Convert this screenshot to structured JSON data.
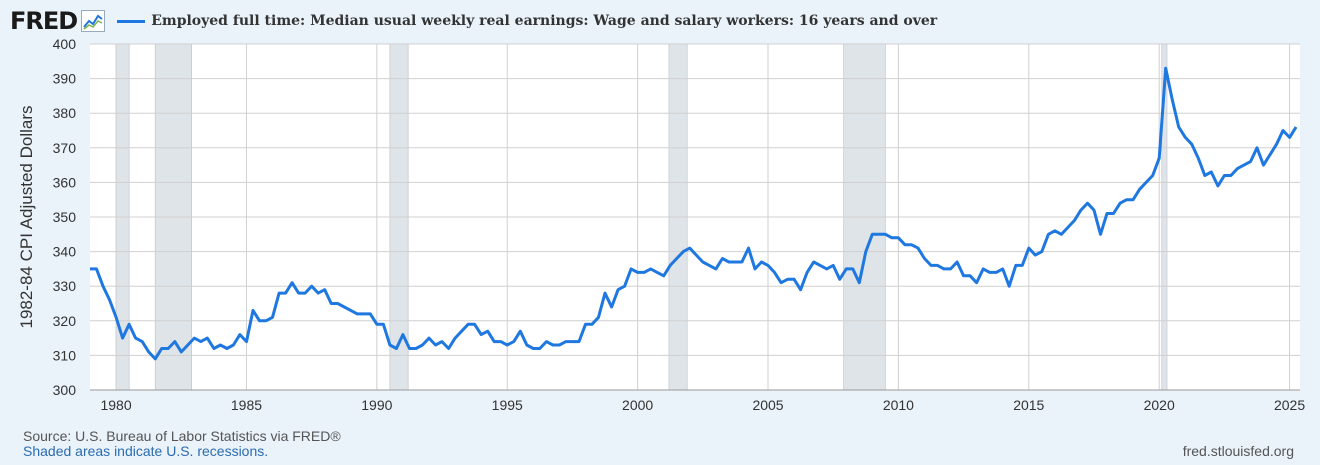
{
  "header": {
    "logo_text": "FRED",
    "series_title": "Employed full time: Median usual weekly real earnings: Wage and salary workers: 16 years and over"
  },
  "footer": {
    "source": "Source: U.S. Bureau of Labor Statistics via FRED®",
    "shaded_note": "Shaded areas indicate U.S. recessions.",
    "site": "fred.stlouisfed.org"
  },
  "colors": {
    "line": "#1f77e0",
    "plot_background": "#ffffff",
    "page_background": "#eaf2fa",
    "grid": "#d0d0d0",
    "recession": "#dfe4e9"
  },
  "chart_data": {
    "type": "line",
    "title": "Employed full time: Median usual weekly real earnings: Wage and salary workers: 16 years and over",
    "xlabel": "",
    "ylabel": "1982-84 CPI Adjusted Dollars",
    "xlim": [
      1979.0,
      2025.4
    ],
    "ylim": [
      300,
      400
    ],
    "grid": true,
    "legend": "top-left",
    "x_ticks": [
      "1980",
      "1985",
      "1990",
      "1995",
      "2000",
      "2005",
      "2010",
      "2015",
      "2020",
      "2025"
    ],
    "y_ticks": [
      "300",
      "310",
      "320",
      "330",
      "340",
      "350",
      "360",
      "370",
      "380",
      "390",
      "400"
    ],
    "recessions": [
      [
        1980.0,
        1980.5
      ],
      [
        1981.5,
        1982.9
      ],
      [
        1990.5,
        1991.2
      ],
      [
        2001.2,
        2001.9
      ],
      [
        2007.9,
        2009.5
      ],
      [
        2020.1,
        2020.3
      ]
    ],
    "series": [
      {
        "name": "Employed full time: Median usual weekly real earnings: Wage and salary workers: 16 years and over",
        "points": [
          [
            1979.0,
            335
          ],
          [
            1979.25,
            335
          ],
          [
            1979.5,
            330
          ],
          [
            1979.75,
            326
          ],
          [
            1980.0,
            321
          ],
          [
            1980.25,
            315
          ],
          [
            1980.5,
            319
          ],
          [
            1980.75,
            315
          ],
          [
            1981.0,
            314
          ],
          [
            1981.25,
            311
          ],
          [
            1981.5,
            309
          ],
          [
            1981.75,
            312
          ],
          [
            1982.0,
            312
          ],
          [
            1982.25,
            314
          ],
          [
            1982.5,
            311
          ],
          [
            1982.75,
            313
          ],
          [
            1983.0,
            315
          ],
          [
            1983.25,
            314
          ],
          [
            1983.5,
            315
          ],
          [
            1983.75,
            312
          ],
          [
            1984.0,
            313
          ],
          [
            1984.25,
            312
          ],
          [
            1984.5,
            313
          ],
          [
            1984.75,
            316
          ],
          [
            1985.0,
            314
          ],
          [
            1985.25,
            323
          ],
          [
            1985.5,
            320
          ],
          [
            1985.75,
            320
          ],
          [
            1986.0,
            321
          ],
          [
            1986.25,
            328
          ],
          [
            1986.5,
            328
          ],
          [
            1986.75,
            331
          ],
          [
            1987.0,
            328
          ],
          [
            1987.25,
            328
          ],
          [
            1987.5,
            330
          ],
          [
            1987.75,
            328
          ],
          [
            1988.0,
            329
          ],
          [
            1988.25,
            325
          ],
          [
            1988.5,
            325
          ],
          [
            1988.75,
            324
          ],
          [
            1989.0,
            323
          ],
          [
            1989.25,
            322
          ],
          [
            1989.5,
            322
          ],
          [
            1989.75,
            322
          ],
          [
            1990.0,
            319
          ],
          [
            1990.25,
            319
          ],
          [
            1990.5,
            313
          ],
          [
            1990.75,
            312
          ],
          [
            1991.0,
            316
          ],
          [
            1991.25,
            312
          ],
          [
            1991.5,
            312
          ],
          [
            1991.75,
            313
          ],
          [
            1992.0,
            315
          ],
          [
            1992.25,
            313
          ],
          [
            1992.5,
            314
          ],
          [
            1992.75,
            312
          ],
          [
            1993.0,
            315
          ],
          [
            1993.25,
            317
          ],
          [
            1993.5,
            319
          ],
          [
            1993.75,
            319
          ],
          [
            1994.0,
            316
          ],
          [
            1994.25,
            317
          ],
          [
            1994.5,
            314
          ],
          [
            1994.75,
            314
          ],
          [
            1995.0,
            313
          ],
          [
            1995.25,
            314
          ],
          [
            1995.5,
            317
          ],
          [
            1995.75,
            313
          ],
          [
            1996.0,
            312
          ],
          [
            1996.25,
            312
          ],
          [
            1996.5,
            314
          ],
          [
            1996.75,
            313
          ],
          [
            1997.0,
            313
          ],
          [
            1997.25,
            314
          ],
          [
            1997.5,
            314
          ],
          [
            1997.75,
            314
          ],
          [
            1998.0,
            319
          ],
          [
            1998.25,
            319
          ],
          [
            1998.5,
            321
          ],
          [
            1998.75,
            328
          ],
          [
            1999.0,
            324
          ],
          [
            1999.25,
            329
          ],
          [
            1999.5,
            330
          ],
          [
            1999.75,
            335
          ],
          [
            2000.0,
            334
          ],
          [
            2000.25,
            334
          ],
          [
            2000.5,
            335
          ],
          [
            2000.75,
            334
          ],
          [
            2001.0,
            333
          ],
          [
            2001.25,
            336
          ],
          [
            2001.5,
            338
          ],
          [
            2001.75,
            340
          ],
          [
            2002.0,
            341
          ],
          [
            2002.25,
            339
          ],
          [
            2002.5,
            337
          ],
          [
            2002.75,
            336
          ],
          [
            2003.0,
            335
          ],
          [
            2003.25,
            338
          ],
          [
            2003.5,
            337
          ],
          [
            2003.75,
            337
          ],
          [
            2004.0,
            337
          ],
          [
            2004.25,
            341
          ],
          [
            2004.5,
            335
          ],
          [
            2004.75,
            337
          ],
          [
            2005.0,
            336
          ],
          [
            2005.25,
            334
          ],
          [
            2005.5,
            331
          ],
          [
            2005.75,
            332
          ],
          [
            2006.0,
            332
          ],
          [
            2006.25,
            329
          ],
          [
            2006.5,
            334
          ],
          [
            2006.75,
            337
          ],
          [
            2007.0,
            336
          ],
          [
            2007.25,
            335
          ],
          [
            2007.5,
            336
          ],
          [
            2007.75,
            332
          ],
          [
            2008.0,
            335
          ],
          [
            2008.25,
            335
          ],
          [
            2008.5,
            331
          ],
          [
            2008.75,
            340
          ],
          [
            2009.0,
            345
          ],
          [
            2009.25,
            345
          ],
          [
            2009.5,
            345
          ],
          [
            2009.75,
            344
          ],
          [
            2010.0,
            344
          ],
          [
            2010.25,
            342
          ],
          [
            2010.5,
            342
          ],
          [
            2010.75,
            341
          ],
          [
            2011.0,
            338
          ],
          [
            2011.25,
            336
          ],
          [
            2011.5,
            336
          ],
          [
            2011.75,
            335
          ],
          [
            2012.0,
            335
          ],
          [
            2012.25,
            337
          ],
          [
            2012.5,
            333
          ],
          [
            2012.75,
            333
          ],
          [
            2013.0,
            331
          ],
          [
            2013.25,
            335
          ],
          [
            2013.5,
            334
          ],
          [
            2013.75,
            334
          ],
          [
            2014.0,
            335
          ],
          [
            2014.25,
            330
          ],
          [
            2014.5,
            336
          ],
          [
            2014.75,
            336
          ],
          [
            2015.0,
            341
          ],
          [
            2015.25,
            339
          ],
          [
            2015.5,
            340
          ],
          [
            2015.75,
            345
          ],
          [
            2016.0,
            346
          ],
          [
            2016.25,
            345
          ],
          [
            2016.5,
            347
          ],
          [
            2016.75,
            349
          ],
          [
            2017.0,
            352
          ],
          [
            2017.25,
            354
          ],
          [
            2017.5,
            352
          ],
          [
            2017.75,
            345
          ],
          [
            2018.0,
            351
          ],
          [
            2018.25,
            351
          ],
          [
            2018.5,
            354
          ],
          [
            2018.75,
            355
          ],
          [
            2019.0,
            355
          ],
          [
            2019.25,
            358
          ],
          [
            2019.5,
            360
          ],
          [
            2019.75,
            362
          ],
          [
            2020.0,
            367
          ],
          [
            2020.25,
            393
          ],
          [
            2020.5,
            384
          ],
          [
            2020.75,
            376
          ],
          [
            2021.0,
            373
          ],
          [
            2021.25,
            371
          ],
          [
            2021.5,
            367
          ],
          [
            2021.75,
            362
          ],
          [
            2022.0,
            363
          ],
          [
            2022.25,
            359
          ],
          [
            2022.5,
            362
          ],
          [
            2022.75,
            362
          ],
          [
            2023.0,
            364
          ],
          [
            2023.25,
            365
          ],
          [
            2023.5,
            366
          ],
          [
            2023.75,
            370
          ],
          [
            2024.0,
            365
          ],
          [
            2024.25,
            368
          ],
          [
            2024.5,
            371
          ],
          [
            2024.75,
            375
          ],
          [
            2025.0,
            373
          ],
          [
            2025.25,
            376
          ]
        ]
      }
    ]
  }
}
